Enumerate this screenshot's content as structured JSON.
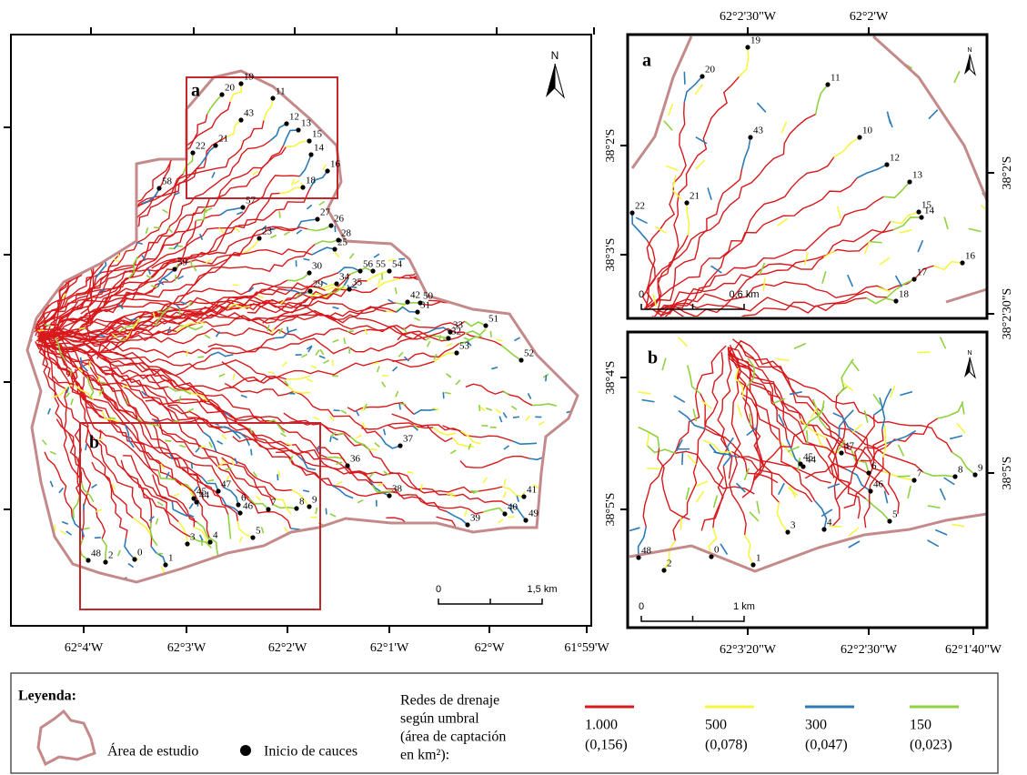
{
  "main_map": {
    "frame_labels": [
      "a",
      "b"
    ],
    "north": "N",
    "x_axis_labels": [
      "62°4'W",
      "62°3'W",
      "62°2'W",
      "62°1'W",
      "62°W",
      "61°59'W"
    ],
    "scale_bar": [
      "0",
      "1,5 km"
    ],
    "points": [
      "19",
      "20",
      "11",
      "43",
      "12",
      "13",
      "21",
      "15",
      "22",
      "14",
      "16",
      "18",
      "58",
      "57",
      "27",
      "26",
      "23",
      "28",
      "25",
      "59",
      "30",
      "56",
      "55",
      "54",
      "34",
      "29",
      "35",
      "42",
      "50",
      "31",
      "51",
      "33",
      "32",
      "53",
      "52",
      "37",
      "36",
      "38",
      "45",
      "47",
      "44",
      "6",
      "46",
      "7",
      "8",
      "9",
      "41",
      "40",
      "49",
      "39",
      "5",
      "3",
      "4",
      "48",
      "2",
      "0",
      "1"
    ]
  },
  "inset_a": {
    "label": "a",
    "north": "N",
    "top_labels": [
      "62°2'30\"W",
      "62°2'W"
    ],
    "left_labels": [
      "38°2'S",
      "38°3'S"
    ],
    "right_labels": [
      "38°2'S",
      "38°2'30\"S"
    ],
    "scale_bar": [
      "0",
      "0,6 km"
    ],
    "points": [
      "19",
      "20",
      "11",
      "43",
      "10",
      "12",
      "13",
      "21",
      "22",
      "15",
      "14",
      "16",
      "17",
      "18"
    ]
  },
  "inset_b": {
    "label": "b",
    "north": "N",
    "left_labels": [
      "38°4'S",
      "38°5'S"
    ],
    "right_labels": [
      "38°5'S"
    ],
    "bottom_labels": [
      "62°3'20\"W",
      "62°2'30\"W",
      "62°1'40\"W"
    ],
    "scale_bar": [
      "0",
      "1 km"
    ],
    "points": [
      "47",
      "45",
      "44",
      "6",
      "46",
      "7",
      "8",
      "9",
      "5",
      "3",
      "4",
      "48",
      "2",
      "0",
      "1"
    ]
  },
  "legend": {
    "title": "Leyenda:",
    "area": "Área de estudio",
    "points": "Inicio de cauces",
    "network_title": [
      "Redes de drenaje",
      "según umbral",
      "(área de captación",
      "en km²):"
    ],
    "items": [
      {
        "value": "1.000",
        "area": "(0,156)",
        "color": "#d7191c"
      },
      {
        "value": "500",
        "area": "(0,078)",
        "color": "#f5f542"
      },
      {
        "value": "300",
        "area": "(0,047)",
        "color": "#2c7bb6"
      },
      {
        "value": "150",
        "area": "(0,023)",
        "color": "#8fd13f"
      }
    ]
  }
}
